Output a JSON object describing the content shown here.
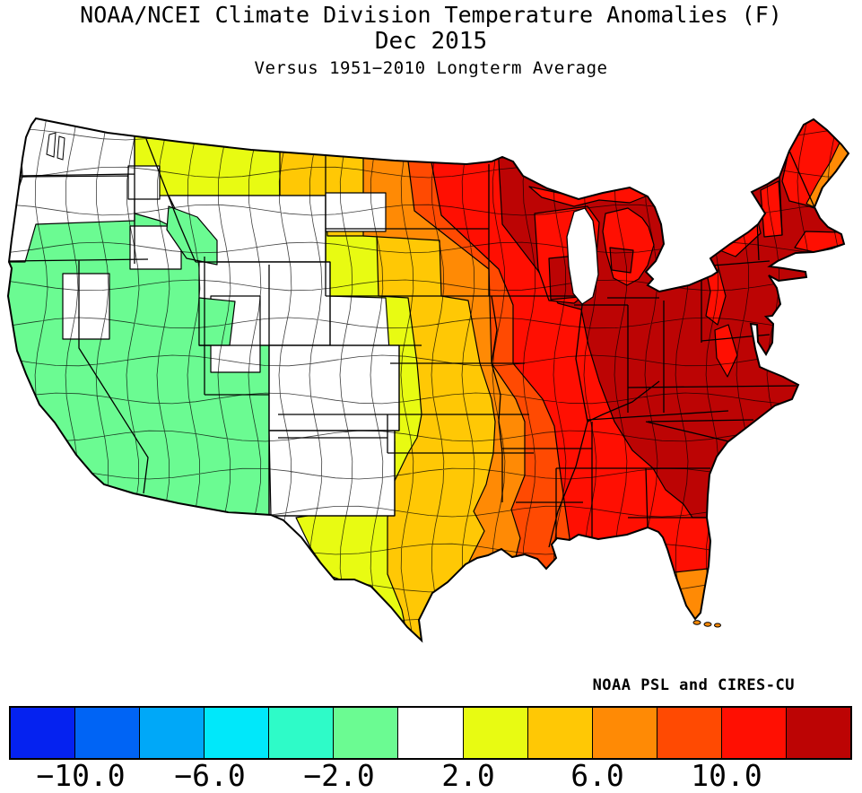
{
  "title": {
    "line1": "NOAA/NCEI Climate Division Temperature Anomalies (F)",
    "line2": "Dec 2015",
    "line3": "Versus 1951−2010 Longterm Average"
  },
  "credit": "NOAA PSL and CIRES-CU",
  "colorbar": {
    "units": "F",
    "segment_colors": [
      "#0522F0",
      "#0064F5",
      "#00A8F8",
      "#00E8FA",
      "#2EFBC8",
      "#6BFB92",
      "#FFFFFF",
      "#E8FB12",
      "#FFC805",
      "#FF8A05",
      "#FF4A02",
      "#FF0F02",
      "#BC0404"
    ],
    "tick_labels": [
      "−10.0",
      "−6.0",
      "−2.0",
      "2.0",
      "6.0",
      "10.0"
    ],
    "tick_boundary_indices": [
      1,
      3,
      5,
      7,
      9,
      11
    ]
  },
  "palette": {
    "white": "#FFFFFF",
    "green": "#6BFB92",
    "yellow": "#E8FB12",
    "gold": "#FFC805",
    "orange": "#FF8A05",
    "deep_orange": "#FF4A02",
    "red": "#FF0F02",
    "dark_red": "#BC0404",
    "outline": "#000000"
  },
  "map_data": {
    "type": "choropleth",
    "region": "Contiguous United States climate divisions",
    "variable": "Temperature anomaly (F) versus 1951-2010 longterm average",
    "period": "Dec 2015",
    "legend_range": [
      "-10.0",
      "-6.0",
      "-2.0",
      "2.0",
      "6.0",
      "10.0"
    ],
    "pattern": [
      {
        "area": "Washington, N Oregon, N Idaho coastally and inland NW",
        "anomaly_class": "near zero (white)"
      },
      {
        "area": "California, Nevada, Utah, Arizona, S Oregon, S Idaho",
        "anomaly_class": "slightly below normal (green)"
      },
      {
        "area": "E Montana, Wyoming, Colorado, New Mexico",
        "anomaly_class": "near zero (white)"
      },
      {
        "area": "N Montana strip, W Dakotas, W Nebraska, W Kansas, OK panhandle, W Texas",
        "anomaly_class": "+2 (yellow)"
      },
      {
        "area": "NE Montana, C Dakotas, C Nebraska, C Kansas, C Oklahoma, C Texas",
        "anomaly_class": "+4 (gold)"
      },
      {
        "area": "E Dakotas, E Texas, S Florida, coastal Maine",
        "anomaly_class": "+6 (orange)"
      },
      {
        "area": "W Iowa, W Missouri, W Arkansas, Louisiana",
        "anomaly_class": "+8 (deep orange)"
      },
      {
        "area": "E North Dakota, Missouri, Arkansas, Mississippi, Alabama, W Georgia, Florida, Wisconsin, Michigan, upstate New York, Vermont, Maine",
        "anomaly_class": "+10 (red)"
      },
      {
        "area": "Minnesota, E Iowa, N Illinois, Indiana, Ohio, Kentucky, Tennessee, Appalachians, Mid-Atlantic, Carolinas, New England",
        "anomaly_class": "+12 and above (dark red)"
      }
    ]
  }
}
